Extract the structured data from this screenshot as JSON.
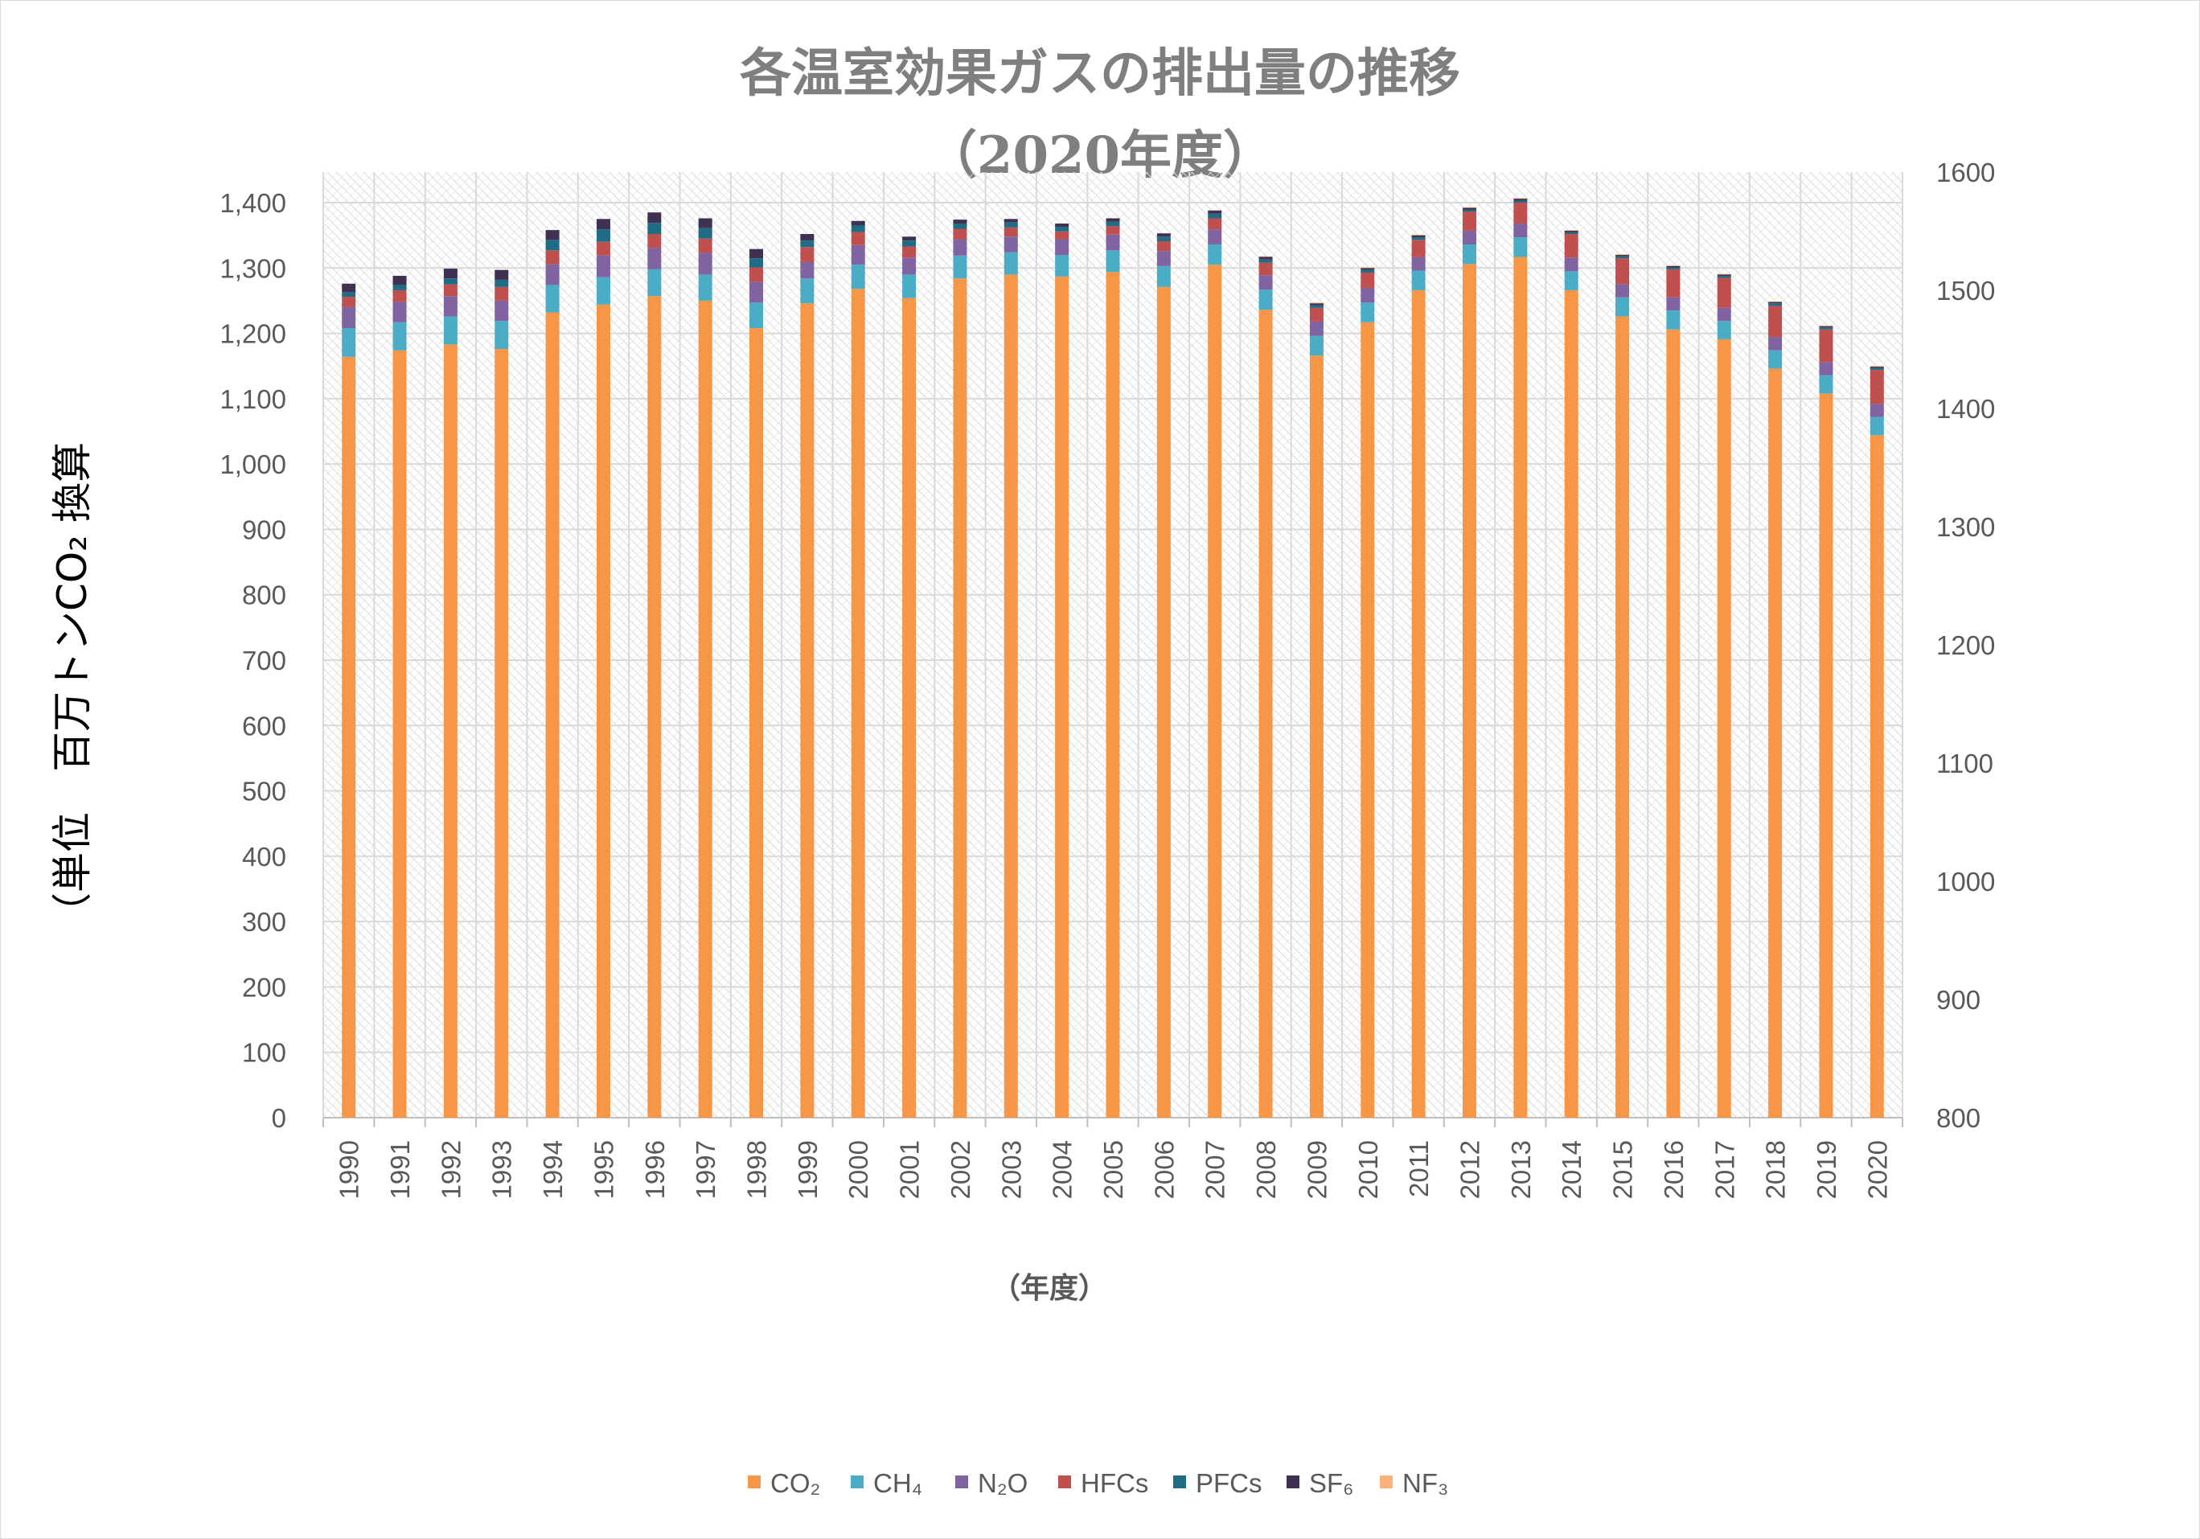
{
  "chart_data": {
    "type": "bar",
    "stacked": true,
    "title": "各温室効果ガスの排出量の推移",
    "subtitle": "（2020年度）",
    "xlabel": "（年度）",
    "ylabel": "（単位　百万トンCO₂ 換算",
    "ylim": [
      0,
      1400
    ],
    "y_ticks": [
      "0",
      "100",
      "200",
      "300",
      "400",
      "500",
      "600",
      "700",
      "800",
      "900",
      "1,000",
      "1,100",
      "1,200",
      "1,300",
      "1,400"
    ],
    "y2lim": [
      800,
      1600
    ],
    "y2_ticks": [
      "800",
      "900",
      "1000",
      "1100",
      "1200",
      "1300",
      "1400",
      "1500",
      "1600"
    ],
    "legend_position": "bottom",
    "categories": [
      "1990",
      "1991",
      "1992",
      "1993",
      "1994",
      "1995",
      "1996",
      "1997",
      "1998",
      "1999",
      "2000",
      "2001",
      "2002",
      "2003",
      "2004",
      "2005",
      "2006",
      "2007",
      "2008",
      "2009",
      "2010",
      "2011",
      "2012",
      "2013",
      "2014",
      "2015",
      "2016",
      "2017",
      "2018",
      "2019",
      "2020"
    ],
    "series": [
      {
        "name": "CO₂",
        "color": "#f79646",
        "values": [
          1164,
          1174,
          1183,
          1176,
          1232,
          1244,
          1257,
          1250,
          1208,
          1246,
          1268,
          1254,
          1284,
          1290,
          1287,
          1294,
          1271,
          1305,
          1236,
          1166,
          1217,
          1266,
          1306,
          1317,
          1266,
          1226,
          1206,
          1191,
          1146,
          1108,
          1044
        ]
      },
      {
        "name": "CH₄",
        "color": "#4bacc6",
        "values": [
          44,
          43,
          43,
          43,
          42,
          42,
          41,
          40,
          39,
          38,
          37,
          36,
          35,
          34,
          33,
          33,
          32,
          31,
          31,
          30,
          30,
          30,
          30,
          30,
          29,
          29,
          29,
          28,
          28,
          28,
          28
        ]
      },
      {
        "name": "N₂O",
        "color": "#8064a2",
        "values": [
          32,
          31,
          31,
          31,
          32,
          33,
          33,
          33,
          32,
          25,
          30,
          26,
          25,
          24,
          24,
          24,
          23,
          23,
          22,
          22,
          22,
          21,
          21,
          21,
          21,
          20,
          20,
          20,
          20,
          20,
          20
        ]
      },
      {
        "name": "HFCs",
        "color": "#c0504d",
        "values": [
          16,
          18,
          18,
          21,
          21,
          21,
          21,
          22,
          22,
          23,
          20,
          17,
          16,
          14,
          12,
          13,
          15,
          17,
          19,
          21,
          24,
          26,
          29,
          32,
          36,
          40,
          43,
          46,
          48,
          50,
          52
        ]
      },
      {
        "name": "PFCs",
        "color": "#1f6c85",
        "values": [
          7,
          8,
          9,
          11,
          16,
          19,
          17,
          16,
          14,
          10,
          10,
          9,
          8,
          8,
          7,
          7,
          7,
          7,
          5,
          4,
          4,
          4,
          3,
          3,
          3,
          3,
          3,
          3,
          4,
          3,
          3
        ]
      },
      {
        "name": "SF₆",
        "color": "#403152",
        "values": [
          13,
          14,
          15,
          15,
          15,
          16,
          16,
          15,
          14,
          10,
          7,
          6,
          6,
          5,
          5,
          5,
          5,
          5,
          4,
          3,
          3,
          3,
          3,
          3,
          2,
          2,
          2,
          2,
          2,
          2,
          2
        ]
      },
      {
        "name": "NF₃",
        "color": "#fbb27f",
        "values": [
          0,
          0,
          0,
          0,
          0,
          0,
          0,
          0,
          0,
          0,
          0,
          0,
          0,
          0,
          0,
          0,
          0,
          0,
          1,
          1,
          1,
          1,
          1,
          1,
          1,
          1,
          1,
          1,
          1,
          1,
          1
        ]
      }
    ]
  }
}
